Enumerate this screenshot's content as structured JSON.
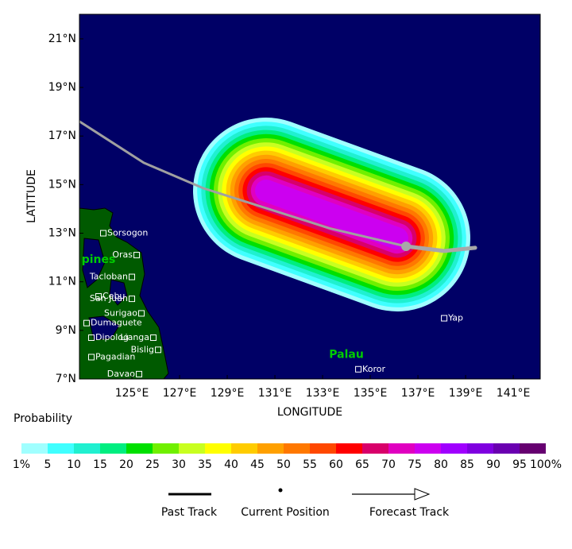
{
  "map": {
    "xlabel": "LONGITUDE",
    "ylabel": "LATITUDE",
    "lon_range": [
      122.8,
      142.13
    ],
    "lat_range": [
      7,
      22.01
    ],
    "xticks": [
      {
        "value": 125,
        "label": "125°E"
      },
      {
        "value": 127,
        "label": "127°E"
      },
      {
        "value": 129,
        "label": "129°E"
      },
      {
        "value": 131,
        "label": "131°E"
      },
      {
        "value": 133,
        "label": "133°E"
      },
      {
        "value": 135,
        "label": "135°E"
      },
      {
        "value": 137,
        "label": "137°E"
      },
      {
        "value": 139,
        "label": "139°E"
      },
      {
        "value": 141,
        "label": "141°E"
      }
    ],
    "yticks": [
      {
        "value": 7,
        "label": "7°N"
      },
      {
        "value": 9,
        "label": "9°N"
      },
      {
        "value": 11,
        "label": "11°N"
      },
      {
        "value": 13,
        "label": "13°N"
      },
      {
        "value": 15,
        "label": "15°N"
      },
      {
        "value": 17,
        "label": "17°N"
      },
      {
        "value": 19,
        "label": "19°N"
      },
      {
        "value": 21,
        "label": "21°N"
      }
    ],
    "places": [
      {
        "name": "Sorsogon",
        "lon": 123.8,
        "lat": 13.0
      },
      {
        "name": "Oras",
        "lon": 125.2,
        "lat": 12.1
      },
      {
        "name": "Tacloban",
        "lon": 125.0,
        "lat": 11.2
      },
      {
        "name": "Cebu",
        "lon": 123.6,
        "lat": 10.4
      },
      {
        "name": "San Juan",
        "lon": 125.0,
        "lat": 10.3
      },
      {
        "name": "Surigao",
        "lon": 125.4,
        "lat": 9.7
      },
      {
        "name": "Dumaguete",
        "lon": 123.1,
        "lat": 9.3
      },
      {
        "name": "Lianga",
        "lon": 125.9,
        "lat": 8.7
      },
      {
        "name": "Dipolog",
        "lon": 123.3,
        "lat": 8.7
      },
      {
        "name": "Bislig",
        "lon": 126.1,
        "lat": 8.2
      },
      {
        "name": "Pagadian",
        "lon": 123.3,
        "lat": 7.9
      },
      {
        "name": "Davao",
        "lon": 125.3,
        "lat": 7.2
      },
      {
        "name": "Koror",
        "lon": 134.5,
        "lat": 7.4
      },
      {
        "name": "Yap",
        "lon": 138.1,
        "lat": 9.5
      }
    ],
    "regions": [
      {
        "name": "pines",
        "lon": 123.6,
        "lat": 11.9
      },
      {
        "name": "Palau",
        "lon": 134.0,
        "lat": 8.0
      }
    ],
    "past_track": {
      "lon": [
        122.8,
        125.5,
        128.0,
        133.3,
        136.5
      ],
      "lat": [
        17.6,
        15.9,
        14.85,
        13.2,
        12.46
      ]
    },
    "current_position": {
      "lon": 136.5,
      "lat": 12.46
    },
    "forecast_track": {
      "lon": [
        136.5,
        138.1,
        139.4
      ],
      "lat": [
        12.46,
        12.27,
        12.4
      ]
    }
  },
  "legend": {
    "title": "Probability",
    "colors": [
      "#a0ffff",
      "#40ffff",
      "#20f0d0",
      "#00ee80",
      "#00e000",
      "#70f000",
      "#c8ff20",
      "#ffff00",
      "#ffcc00",
      "#ffa000",
      "#ff7800",
      "#ff4800",
      "#ff0000",
      "#d8006a",
      "#e000c0",
      "#cc00f0",
      "#a000ff",
      "#7f00e0",
      "#6a00b0",
      "#660070"
    ],
    "labels": [
      "1%",
      "5",
      "10",
      "15",
      "20",
      "25",
      "30",
      "35",
      "40",
      "45",
      "50",
      "55",
      "60",
      "65",
      "70",
      "75",
      "80",
      "85",
      "90",
      "95",
      "100%"
    ],
    "items": [
      "Past Track",
      "Current Position",
      "Forecast Track"
    ]
  }
}
